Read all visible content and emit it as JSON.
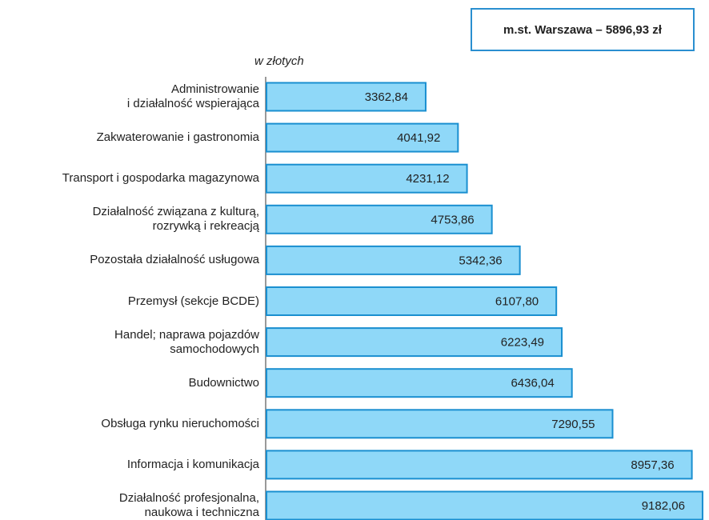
{
  "chart_data": {
    "type": "barh",
    "subtitle": "w złotych",
    "annotation": "m.st. Warszawa – 5896,93 zł",
    "categories": [
      "Administrowanie\ni działalność wspierająca",
      "Zakwaterowanie i gastronomia",
      "Transport i gospodarka magazynowa",
      "Działalność związana z kulturą,\nrozrywką i rekreacją",
      "Pozostała działalność usługowa",
      "Przemysł (sekcje BCDE)",
      "Handel; naprawa pojazdów\nsamochodowych",
      "Budownictwo",
      "Obsługa rynku nieruchomości",
      "Informacja i komunikacja",
      "Działalność profesjonalna,\nnaukowa i techniczna"
    ],
    "values": [
      3362.84,
      4041.92,
      4231.12,
      4753.86,
      5342.36,
      6107.8,
      6223.49,
      6436.04,
      7290.55,
      8957.36,
      9182.06
    ],
    "value_labels": [
      "3362,84",
      "4041,92",
      "4231,12",
      "4753,86",
      "5342,36",
      "6107,80",
      "6223,49",
      "6436,04",
      "7290,55",
      "8957,36",
      "9182,06"
    ],
    "color": "#8fd8f8",
    "edge_color": "#1a8fd0",
    "xlim": [
      0,
      9250
    ]
  }
}
